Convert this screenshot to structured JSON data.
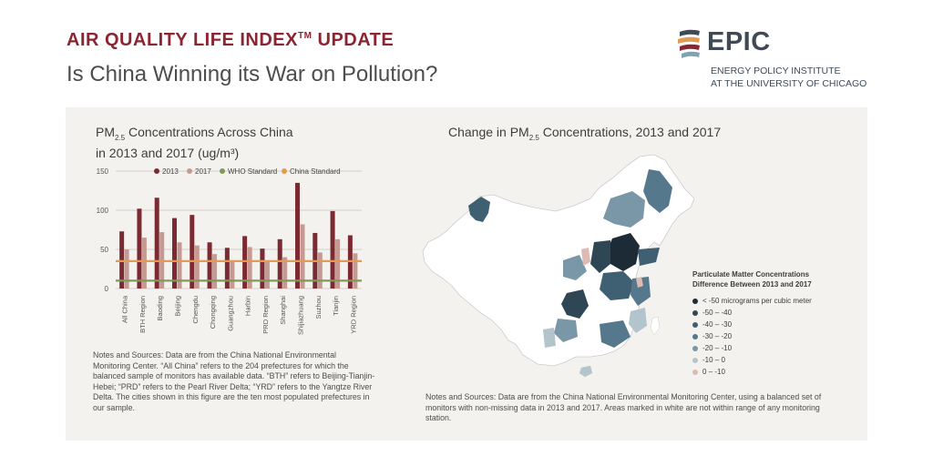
{
  "header": {
    "title": "AIR QUALITY LIFE INDEX",
    "title_tm": "TM",
    "title_suffix": " UPDATE",
    "subtitle": "Is China Winning its War on Pollution?"
  },
  "logo": {
    "name": "EPIC",
    "line1": "ENERGY POLICY INSTITUTE",
    "line2": "AT THE UNIVERSITY OF CHICAGO"
  },
  "left_chart": {
    "title_a": "PM",
    "title_sub": "2.5",
    "title_b": " Concentrations Across China",
    "title_line2": "in 2013 and 2017 (ug/m³)"
  },
  "right_chart": {
    "title_a": "Change in PM",
    "title_sub": "2.5",
    "title_b": " Concentrations, 2013 and 2017"
  },
  "chart_data": [
    {
      "type": "bar",
      "categories": [
        "All China",
        "BTH Region",
        "Baoding",
        "Beijing",
        "Chengdu",
        "Chongqing",
        "Guangzhou",
        "Harbin",
        "PRD Region",
        "Shanghai",
        "Shijiazhuang",
        "Suzhou",
        "Tianjin",
        "YRD Region"
      ],
      "series": [
        {
          "name": "2013",
          "color": "#7b2a32",
          "values": [
            73,
            102,
            116,
            90,
            94,
            59,
            52,
            67,
            51,
            63,
            135,
            71,
            99,
            68
          ]
        },
        {
          "name": "2017",
          "color": "#c49a92",
          "values": [
            50,
            65,
            72,
            59,
            55,
            44,
            35,
            53,
            35,
            40,
            82,
            46,
            63,
            45
          ]
        }
      ],
      "reference_lines": [
        {
          "name": "WHO Standard",
          "value": 10,
          "color": "#7d9a58"
        },
        {
          "name": "China Standard",
          "value": 35,
          "color": "#e39a52"
        }
      ],
      "yticks": [
        0,
        50,
        100,
        150
      ],
      "ylim": [
        0,
        150
      ],
      "grid": true,
      "legend_position": "top"
    },
    {
      "type": "heatmap",
      "legend_title_line1": "Particulate Matter Concentrations",
      "legend_title_line2": "Difference Between 2013 and 2017",
      "legend": [
        {
          "label": "< -50 micrograms per cubic meter",
          "color": "#1c2b36"
        },
        {
          "label": "-50 – -40",
          "color": "#2f4654"
        },
        {
          "label": "-40 – -30",
          "color": "#3f5f72"
        },
        {
          "label": "-30 – -20",
          "color": "#56788c"
        },
        {
          "label": "-20 – -10",
          "color": "#7a97a8"
        },
        {
          "label": "-10 – 0",
          "color": "#b4c4cd"
        },
        {
          "label": "0 – -10",
          "color": "#ddbab2"
        }
      ]
    }
  ],
  "notes": {
    "left": "Notes and Sources: Data are from the China National Environmental Monitoring Center. “All China” refers to the 204 prefectures for which the balanced sample of monitors has available data. “BTH” refers to Beijing-Tianjin-Hebei; “PRD” refers to the Pearl River Delta; “YRD” refers to the Yangtze River Delta. The cities shown in this figure are the ten most populated prefectures in our sample.",
    "right": "Notes and Sources: Data are from the China National Environmental Monitoring Center, using a balanced set of monitors with non-missing data in 2013 and 2017. Areas marked in white are not within range of any monitoring station."
  }
}
